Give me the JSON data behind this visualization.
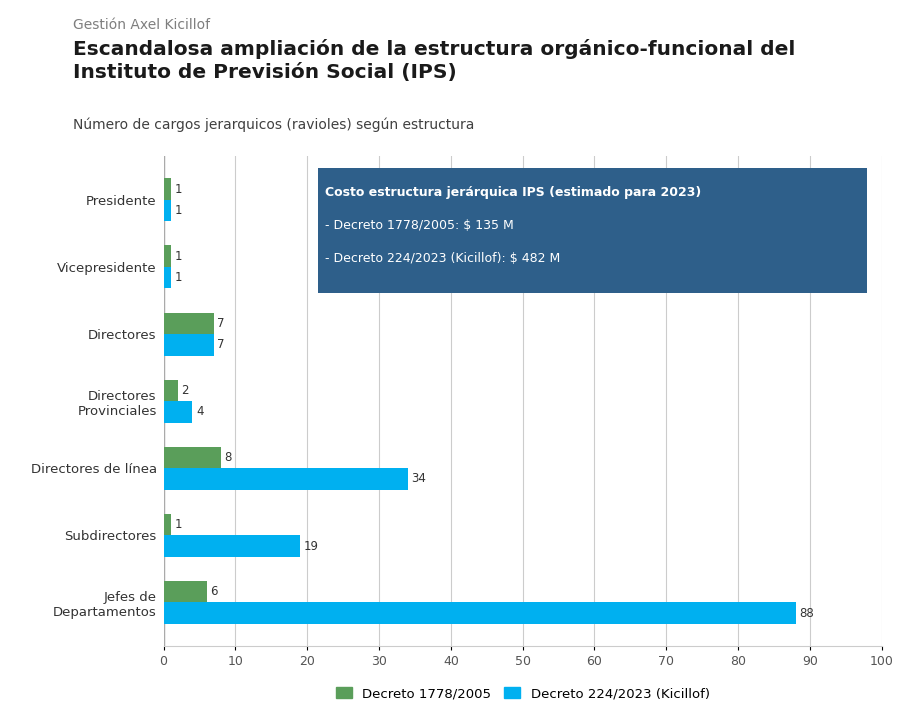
{
  "supertitle": "Gestión Axel Kicillof",
  "title": "Escandalosa ampliación de la estructura orgánico-funcional del\nInstituto de Previsión Social (IPS)",
  "subtitle": "Número de cargos jerarquicos (ravioles) según estructura",
  "categories": [
    "Jefes de\nDepartamentos",
    "Subdirectores",
    "Directores de línea",
    "Directores\nProvinciales",
    "Directores",
    "Vicepresidente",
    "Presidente"
  ],
  "values_decreto1778": [
    6,
    1,
    8,
    2,
    7,
    1,
    1
  ],
  "values_decreto224": [
    88,
    19,
    34,
    4,
    7,
    1,
    1
  ],
  "color_decreto1778": "#5a9e5a",
  "color_decreto224": "#00b0f0",
  "xlim": [
    0,
    100
  ],
  "xticks": [
    0,
    10,
    20,
    30,
    40,
    50,
    60,
    70,
    80,
    90,
    100
  ],
  "legend_label1": "Decreto 1778/2005",
  "legend_label2": "Decreto 224/2023 (Kicillof)",
  "annotation_title": "Costo estructura jerárquica IPS (estimado para 2023)",
  "annotation_line1": "- Decreto 1778/2005: $ 135 M",
  "annotation_line2": "- Decreto 224/2023 (Kicillof): $ 482 M",
  "annotation_bg": "#2e5f8a",
  "annotation_text_color": "#ffffff",
  "background_color": "#ffffff",
  "grid_color": "#cccccc",
  "supertitle_color": "#7f7f7f",
  "title_color": "#1a1a1a",
  "subtitle_color": "#404040"
}
